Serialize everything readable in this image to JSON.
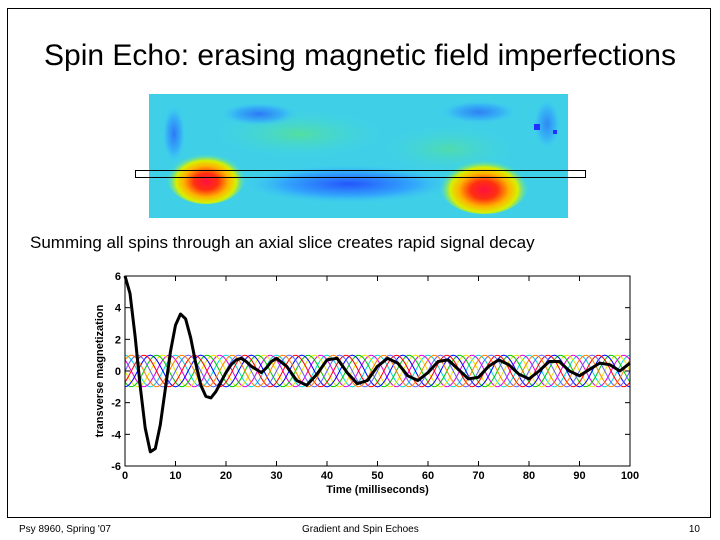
{
  "slide": {
    "title": "Spin Echo: erasing magnetic field imperfections",
    "caption": "Summing all spins through an axial slice creates rapid signal decay"
  },
  "footer": {
    "left": "Psy 8960, Spring '07",
    "center": "Gradient and Spin Echoes",
    "right": "10"
  },
  "colors": {
    "sum_line": "#000000",
    "spin_colors": [
      "#00d8d8",
      "#e000e0",
      "#e8e800",
      "#00c800",
      "#0000ff",
      "#ff0000",
      "#6060ff",
      "#ff8000"
    ]
  },
  "chart_data": {
    "type": "line",
    "xlabel": "Time (milliseconds)",
    "ylabel": "transverse magnetization",
    "xlim": [
      0,
      100
    ],
    "ylim": [
      -6,
      6
    ],
    "x_ticks": [
      0,
      10,
      20,
      30,
      40,
      50,
      60,
      70,
      80,
      90,
      100
    ],
    "y_ticks": [
      -6,
      -4,
      -2,
      0,
      2,
      4,
      6
    ],
    "grid": false,
    "legend": "none",
    "spin_series": {
      "amplitude": 1,
      "period_ms": 10,
      "count": 8
    },
    "sum_series": {
      "x": [
        0,
        1,
        2,
        3,
        4,
        5,
        6,
        7,
        8,
        9,
        10,
        11,
        12,
        13,
        14,
        15,
        16,
        17,
        18,
        19,
        20,
        21,
        22,
        23,
        24,
        25,
        26,
        27,
        28,
        29,
        30,
        32,
        34,
        36,
        38,
        40,
        42,
        44,
        46,
        48,
        50,
        52,
        54,
        56,
        58,
        60,
        62,
        64,
        66,
        68,
        70,
        72,
        74,
        76,
        78,
        80,
        82,
        84,
        86,
        88,
        90,
        92,
        94,
        96,
        98,
        100
      ],
      "y": [
        6.0,
        4.9,
        2.2,
        -0.9,
        -3.6,
        -5.1,
        -4.9,
        -3.4,
        -1.1,
        1.2,
        2.9,
        3.6,
        3.3,
        2.1,
        0.5,
        -0.9,
        -1.6,
        -1.7,
        -1.3,
        -0.7,
        -0.1,
        0.4,
        0.7,
        0.8,
        0.6,
        0.3,
        0.1,
        -0.1,
        0.2,
        0.6,
        0.8,
        0.3,
        -0.6,
        -0.9,
        -0.2,
        0.7,
        0.8,
        -0.1,
        -0.8,
        -0.6,
        0.3,
        0.8,
        0.5,
        -0.3,
        -0.6,
        -0.1,
        0.6,
        0.7,
        0.1,
        -0.5,
        -0.4,
        0.3,
        0.7,
        0.4,
        -0.2,
        -0.5,
        0.0,
        0.6,
        0.6,
        0.0,
        -0.3,
        0.1,
        0.5,
        0.4,
        0.0,
        0.5
      ]
    }
  }
}
